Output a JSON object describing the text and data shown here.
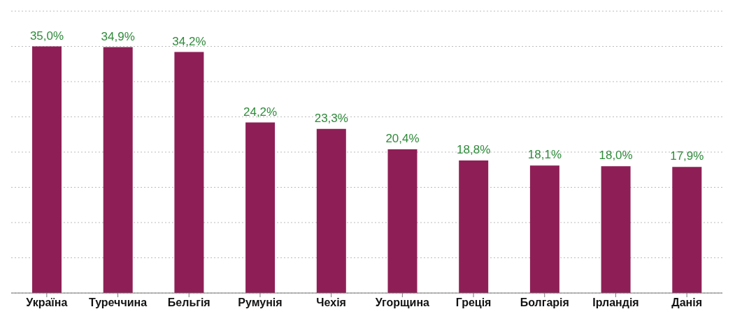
{
  "chart_data": {
    "type": "bar",
    "categories": [
      "Україна",
      "Туреччина",
      "Бельгія",
      "Румунія",
      "Чехія",
      "Угорщина",
      "Греція",
      "Болгарія",
      "Ірландія",
      "Данія"
    ],
    "values": [
      35.0,
      34.9,
      34.2,
      24.2,
      23.3,
      20.4,
      18.8,
      18.1,
      18.0,
      17.9
    ],
    "value_labels": [
      "35,0%",
      "34,9%",
      "34,2%",
      "24,2%",
      "23,3%",
      "20,4%",
      "18,8%",
      "18,1%",
      "18,0%",
      "17,9%"
    ],
    "color": "#8e1f56",
    "ylim": [
      0,
      40
    ],
    "yticks": [
      {
        "value": 5,
        "label": null
      },
      {
        "value": 10,
        "label": null
      },
      {
        "value": 15,
        "label": null
      },
      {
        "value": 20,
        "label": null
      },
      {
        "value": 25,
        "label": null
      },
      {
        "value": 30,
        "label": null
      },
      {
        "value": 35,
        "label": null
      }
    ],
    "tick_labels": "x",
    "grid": "y"
  }
}
